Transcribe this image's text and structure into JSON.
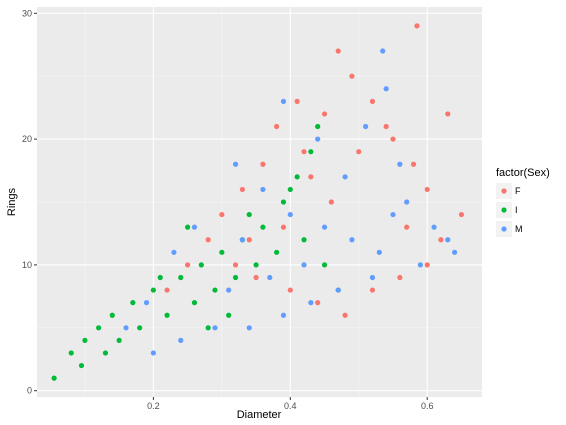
{
  "chart_data": {
    "type": "scatter",
    "title": "",
    "xlabel": "Diameter",
    "ylabel": "Rings",
    "xlim": [
      0.03,
      0.68
    ],
    "ylim": [
      -0.5,
      30.5
    ],
    "x_ticks": [
      0.2,
      0.4,
      0.6
    ],
    "x_tick_labels": [
      "0.2",
      "0.4",
      "0.6"
    ],
    "y_ticks": [
      0,
      10,
      20,
      30
    ],
    "y_tick_labels": [
      "0",
      "10",
      "20",
      "30"
    ],
    "grid": true,
    "legend": {
      "title": "factor(Sex)",
      "placement": "right",
      "entries": [
        {
          "label": "F",
          "color": "#F8766D"
        },
        {
          "label": "I",
          "color": "#00BA38"
        },
        {
          "label": "M",
          "color": "#619CFF"
        }
      ]
    },
    "series": [
      {
        "name": "F",
        "color": "#F8766D",
        "points": [
          {
            "x": 0.47,
            "y": 27
          },
          {
            "x": 0.585,
            "y": 29
          },
          {
            "x": 0.49,
            "y": 25
          },
          {
            "x": 0.63,
            "y": 22
          },
          {
            "x": 0.65,
            "y": 14
          },
          {
            "x": 0.62,
            "y": 12
          },
          {
            "x": 0.6,
            "y": 16
          },
          {
            "x": 0.58,
            "y": 18
          },
          {
            "x": 0.55,
            "y": 20
          },
          {
            "x": 0.52,
            "y": 23
          },
          {
            "x": 0.45,
            "y": 22
          },
          {
            "x": 0.41,
            "y": 23
          },
          {
            "x": 0.38,
            "y": 21
          },
          {
            "x": 0.33,
            "y": 16
          },
          {
            "x": 0.3,
            "y": 14
          },
          {
            "x": 0.28,
            "y": 12
          },
          {
            "x": 0.32,
            "y": 10
          },
          {
            "x": 0.35,
            "y": 9
          },
          {
            "x": 0.4,
            "y": 8
          },
          {
            "x": 0.44,
            "y": 7
          },
          {
            "x": 0.48,
            "y": 6
          },
          {
            "x": 0.52,
            "y": 8
          },
          {
            "x": 0.56,
            "y": 9
          },
          {
            "x": 0.6,
            "y": 10
          },
          {
            "x": 0.25,
            "y": 10
          },
          {
            "x": 0.22,
            "y": 8
          },
          {
            "x": 0.36,
            "y": 18
          },
          {
            "x": 0.43,
            "y": 17
          },
          {
            "x": 0.5,
            "y": 19
          },
          {
            "x": 0.57,
            "y": 13
          },
          {
            "x": 0.46,
            "y": 15
          },
          {
            "x": 0.39,
            "y": 13
          },
          {
            "x": 0.54,
            "y": 21
          },
          {
            "x": 0.42,
            "y": 19
          },
          {
            "x": 0.34,
            "y": 12
          }
        ]
      },
      {
        "name": "I",
        "color": "#00BA38",
        "points": [
          {
            "x": 0.055,
            "y": 1
          },
          {
            "x": 0.095,
            "y": 2
          },
          {
            "x": 0.08,
            "y": 3
          },
          {
            "x": 0.1,
            "y": 4
          },
          {
            "x": 0.12,
            "y": 5
          },
          {
            "x": 0.14,
            "y": 6
          },
          {
            "x": 0.17,
            "y": 7
          },
          {
            "x": 0.2,
            "y": 8
          },
          {
            "x": 0.24,
            "y": 9
          },
          {
            "x": 0.27,
            "y": 10
          },
          {
            "x": 0.3,
            "y": 11
          },
          {
            "x": 0.33,
            "y": 12
          },
          {
            "x": 0.36,
            "y": 13
          },
          {
            "x": 0.39,
            "y": 15
          },
          {
            "x": 0.41,
            "y": 17
          },
          {
            "x": 0.43,
            "y": 19
          },
          {
            "x": 0.18,
            "y": 5
          },
          {
            "x": 0.22,
            "y": 6
          },
          {
            "x": 0.26,
            "y": 7
          },
          {
            "x": 0.29,
            "y": 8
          },
          {
            "x": 0.32,
            "y": 9
          },
          {
            "x": 0.35,
            "y": 10
          },
          {
            "x": 0.38,
            "y": 11
          },
          {
            "x": 0.42,
            "y": 12
          },
          {
            "x": 0.45,
            "y": 10
          },
          {
            "x": 0.47,
            "y": 8
          },
          {
            "x": 0.13,
            "y": 3
          },
          {
            "x": 0.15,
            "y": 4
          },
          {
            "x": 0.25,
            "y": 13
          },
          {
            "x": 0.34,
            "y": 14
          },
          {
            "x": 0.4,
            "y": 16
          },
          {
            "x": 0.21,
            "y": 9
          },
          {
            "x": 0.31,
            "y": 6
          },
          {
            "x": 0.28,
            "y": 5
          },
          {
            "x": 0.44,
            "y": 21
          }
        ]
      },
      {
        "name": "M",
        "color": "#619CFF",
        "points": [
          {
            "x": 0.535,
            "y": 27
          },
          {
            "x": 0.54,
            "y": 24
          },
          {
            "x": 0.39,
            "y": 23
          },
          {
            "x": 0.44,
            "y": 20
          },
          {
            "x": 0.51,
            "y": 21
          },
          {
            "x": 0.56,
            "y": 18
          },
          {
            "x": 0.61,
            "y": 13
          },
          {
            "x": 0.63,
            "y": 12
          },
          {
            "x": 0.64,
            "y": 11
          },
          {
            "x": 0.59,
            "y": 10
          },
          {
            "x": 0.52,
            "y": 9
          },
          {
            "x": 0.47,
            "y": 8
          },
          {
            "x": 0.43,
            "y": 7
          },
          {
            "x": 0.39,
            "y": 6
          },
          {
            "x": 0.34,
            "y": 5
          },
          {
            "x": 0.29,
            "y": 5
          },
          {
            "x": 0.24,
            "y": 4
          },
          {
            "x": 0.2,
            "y": 3
          },
          {
            "x": 0.16,
            "y": 5
          },
          {
            "x": 0.19,
            "y": 7
          },
          {
            "x": 0.23,
            "y": 11
          },
          {
            "x": 0.26,
            "y": 13
          },
          {
            "x": 0.32,
            "y": 18
          },
          {
            "x": 0.36,
            "y": 16
          },
          {
            "x": 0.4,
            "y": 14
          },
          {
            "x": 0.45,
            "y": 13
          },
          {
            "x": 0.49,
            "y": 12
          },
          {
            "x": 0.53,
            "y": 11
          },
          {
            "x": 0.57,
            "y": 15
          },
          {
            "x": 0.48,
            "y": 17
          },
          {
            "x": 0.37,
            "y": 9
          },
          {
            "x": 0.31,
            "y": 8
          },
          {
            "x": 0.42,
            "y": 10
          },
          {
            "x": 0.55,
            "y": 14
          },
          {
            "x": 0.33,
            "y": 12
          }
        ]
      }
    ]
  }
}
